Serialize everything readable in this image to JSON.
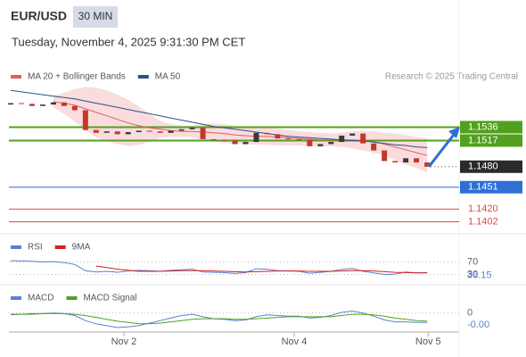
{
  "header": {
    "symbol": "EUR/USD",
    "timeframe": "30 MIN",
    "datetime": "Tuesday, November 4, 2025 9:31:30 PM CET",
    "source": "Research © 2025 Trading Central"
  },
  "chart_data": [
    {
      "type": "candlestick",
      "xlim": [
        0,
        42
      ],
      "ylim": [
        1.139,
        1.1596
      ],
      "up_color": "#3a3a3a",
      "down_color": "#c0392b",
      "open": [
        1.1568,
        1.157,
        1.1569,
        1.1566,
        1.1568,
        1.1571,
        1.1566,
        1.156,
        1.1532,
        1.1528,
        1.153,
        1.1526,
        1.1529,
        1.1531,
        1.153,
        1.1528,
        1.1531,
        1.1533,
        1.1535,
        1.1519,
        1.1518,
        1.1517,
        1.1512,
        1.1515,
        1.1528,
        1.1526,
        1.152,
        1.1519,
        1.1518,
        1.1509,
        1.1512,
        1.1515,
        1.1524,
        1.1527,
        1.1513,
        1.1503,
        1.1488,
        1.1486,
        1.1492,
        1.1486
      ],
      "close": [
        1.157,
        1.1569,
        1.1566,
        1.1568,
        1.1571,
        1.1566,
        1.156,
        1.1532,
        1.1528,
        1.153,
        1.1526,
        1.1529,
        1.1531,
        1.153,
        1.1528,
        1.1531,
        1.1533,
        1.1535,
        1.1519,
        1.1518,
        1.1517,
        1.1512,
        1.1515,
        1.1528,
        1.1526,
        1.152,
        1.1519,
        1.1518,
        1.1509,
        1.1512,
        1.1515,
        1.1524,
        1.1527,
        1.1513,
        1.1503,
        1.1488,
        1.1486,
        1.1492,
        1.1486,
        1.148
      ],
      "close_label": "1.1480",
      "series": [
        {
          "name": "MA 20 + Bollinger Bands",
          "color": "#e06060",
          "values": [
            null,
            null,
            null,
            null,
            1.1572,
            1.157,
            1.1567,
            1.1562,
            1.1557,
            1.1552,
            1.1547,
            1.1542,
            1.1538,
            1.1535,
            1.1533,
            1.1531,
            1.153,
            1.153,
            1.1529,
            1.1528,
            1.1527,
            1.1525,
            1.1524,
            1.1523,
            1.1523,
            1.1522,
            1.1521,
            1.152,
            1.1519,
            1.1518,
            1.1518,
            1.1518,
            1.1518,
            1.1517,
            1.1515,
            1.1512,
            1.1508,
            1.1504,
            1.15,
            1.1496
          ]
        },
        {
          "name": "MA 50",
          "color": "#2d4f86",
          "values": [
            1.1588,
            1.1586,
            1.1584,
            1.1582,
            1.158,
            1.1578,
            1.1576,
            1.1573,
            1.157,
            1.1567,
            1.1564,
            1.1561,
            1.1558,
            1.1555,
            1.1552,
            1.1549,
            1.1546,
            1.1543,
            1.154,
            1.1537,
            1.1535,
            1.1533,
            1.1531,
            1.1529,
            1.1527,
            1.1525,
            1.1523,
            1.1522,
            1.1521,
            1.152,
            1.1519,
            1.1518,
            1.1517,
            1.1516,
            1.1515,
            1.1513,
            1.1511,
            1.151,
            1.1508,
            1.1507
          ]
        }
      ],
      "bands": {
        "color": "#f9d3d6",
        "upper": [
          null,
          null,
          null,
          null,
          1.158,
          1.1585,
          1.159,
          1.1593,
          1.1592,
          1.1588,
          1.1582,
          1.1575,
          1.1565,
          1.1555,
          1.1545,
          1.154,
          1.1538,
          1.1538,
          1.154,
          1.1541,
          1.154,
          1.1538,
          1.1536,
          1.1535,
          1.1535,
          1.1534,
          1.1532,
          1.153,
          1.1529,
          1.1528,
          1.1527,
          1.1528,
          1.153,
          1.1531,
          1.153,
          1.1528,
          1.1527,
          1.1525,
          1.1522,
          1.152
        ],
        "lower": [
          null,
          null,
          null,
          null,
          1.1564,
          1.1555,
          1.1544,
          1.1531,
          1.1522,
          1.1516,
          1.1512,
          1.1509,
          1.1511,
          1.1515,
          1.1521,
          1.1522,
          1.1522,
          1.1522,
          1.1518,
          1.1515,
          1.1514,
          1.1512,
          1.1512,
          1.1511,
          1.1511,
          1.151,
          1.151,
          1.151,
          1.1509,
          1.1508,
          1.1509,
          1.1508,
          1.1506,
          1.1503,
          1.15,
          1.1496,
          1.1489,
          1.1483,
          1.1478,
          1.1472
        ]
      },
      "levels": {
        "values": [
          1.1536,
          1.1517,
          1.1451,
          1.142,
          1.1402
        ],
        "value_labels": [
          "1.1536",
          "1.1517",
          "1.1451",
          "1.1420",
          "1.1402"
        ],
        "colors": [
          "#52a11e",
          "#52a11e",
          "#2f6fd6",
          "#e04848",
          "#e04848"
        ],
        "label_style": [
          "box",
          "box",
          "box",
          "text",
          "text"
        ]
      }
    },
    {
      "type": "line",
      "xlim": [
        0,
        42
      ],
      "ylim": [
        0,
        100
      ],
      "yticks": [
        70,
        30
      ],
      "series": [
        {
          "name": "RSI",
          "color": "#5b7fd1",
          "values": [
            74,
            73,
            72,
            70,
            71,
            68,
            62,
            42,
            38,
            40,
            37,
            41,
            43,
            42,
            40,
            43,
            45,
            47,
            38,
            37,
            36,
            33,
            36,
            48,
            47,
            42,
            41,
            40,
            34,
            37,
            40,
            46,
            49,
            40,
            35,
            30,
            31,
            38,
            35,
            36.15
          ]
        },
        {
          "name": "9MA",
          "color": "#d42020",
          "values": [
            null,
            null,
            null,
            null,
            null,
            null,
            null,
            null,
            57,
            52,
            47,
            43,
            40,
            40,
            40,
            41,
            42,
            42,
            42,
            41,
            40,
            39,
            38,
            39,
            40,
            41,
            41,
            41,
            40,
            40,
            40,
            41,
            42,
            42,
            41,
            39,
            37,
            36,
            35,
            35
          ]
        }
      ]
    },
    {
      "type": "line",
      "xlim": [
        0,
        42
      ],
      "ylim": [
        -0.003,
        0.0015
      ],
      "yticks": [
        0
      ],
      "xticks": [
        {
          "value": 10.6,
          "label": "Nov 2"
        },
        {
          "value": 26.55,
          "label": "Nov 4"
        },
        {
          "value": 39.1,
          "label": "Nov 5"
        }
      ],
      "last_label": "-0.00",
      "series": [
        {
          "name": "MACD",
          "color": "#5b7fd1",
          "values": [
            -0.0003,
            -0.0002,
            -0.0001,
            -0.0001,
            0.0,
            -0.0001,
            -0.0004,
            -0.0012,
            -0.0017,
            -0.002,
            -0.0023,
            -0.0022,
            -0.002,
            -0.0016,
            -0.0012,
            -0.0008,
            -0.0004,
            -0.0002,
            -0.0006,
            -0.0009,
            -0.001,
            -0.0012,
            -0.0011,
            -0.0006,
            -0.0003,
            -0.0004,
            -0.0005,
            -0.0005,
            -0.0008,
            -0.0007,
            -0.0004,
            0.0001,
            0.0003,
            0.0,
            -0.0005,
            -0.0011,
            -0.0014,
            -0.0014,
            -0.0015,
            -0.0015
          ]
        },
        {
          "name": "MACD Signal",
          "color": "#52a11e",
          "values": [
            -0.0002,
            -0.0002,
            -0.0002,
            -0.0001,
            -0.0001,
            -0.0001,
            -0.0002,
            -0.0004,
            -0.0007,
            -0.001,
            -0.0013,
            -0.0015,
            -0.0017,
            -0.0017,
            -0.0016,
            -0.0014,
            -0.0012,
            -0.001,
            -0.0009,
            -0.0009,
            -0.0009,
            -0.001,
            -0.001,
            -0.0009,
            -0.0008,
            -0.0007,
            -0.0006,
            -0.0006,
            -0.0006,
            -0.0006,
            -0.0006,
            -0.0004,
            -0.0002,
            -0.0002,
            -0.0003,
            -0.0005,
            -0.0008,
            -0.001,
            -0.0012,
            -0.0013
          ]
        }
      ]
    }
  ]
}
